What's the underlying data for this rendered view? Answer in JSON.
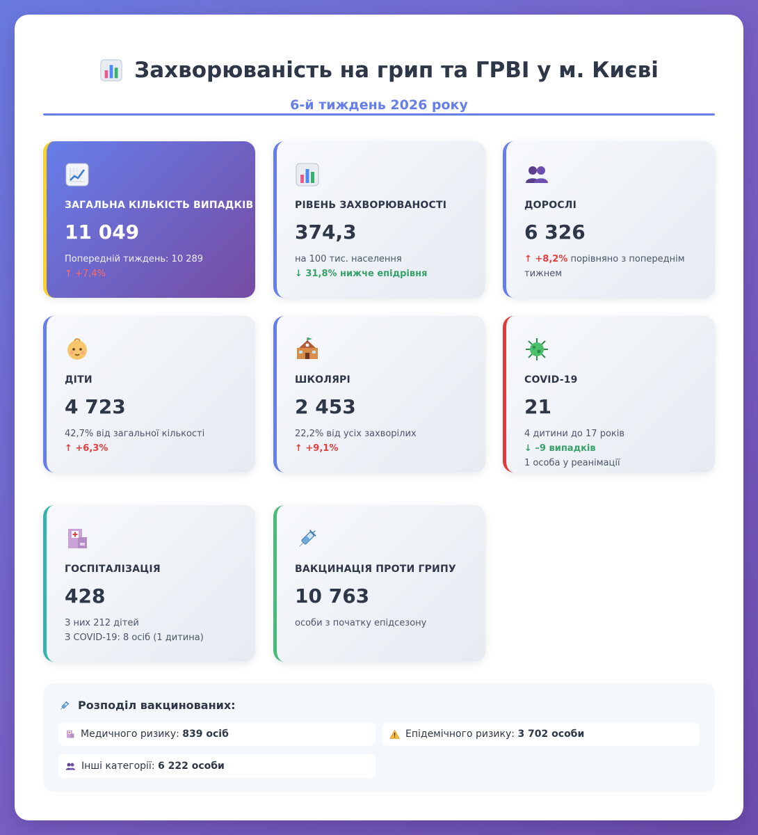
{
  "header": {
    "title": "Захворюваність на грип та ГРВІ у м. Києві",
    "subtitle": "6-й тиждень 2026 року",
    "title_icon": "bar-chart-icon"
  },
  "cards": [
    {
      "icon": "chart-increasing-icon",
      "label": "ЗАГАЛЬНА КІЛЬКІСТЬ ВИПАДКІВ",
      "value": "11 049",
      "note1": "Попередній тиждень: 10 289",
      "note2": "↑ +7,4%"
    },
    {
      "icon": "bar-chart-icon",
      "label": "РІВЕНЬ ЗАХВОРЮВАНОСТІ",
      "value": "374,3",
      "note1": "на 100 тис. населення",
      "note2": "↓ 31,8% нижче епідрівня"
    },
    {
      "icon": "people-icon",
      "label": "ДОРОСЛІ",
      "value": "6 326",
      "note_change": "↑ +8,2%",
      "note_rest": " порівняно з попереднім тижнем"
    },
    {
      "icon": "baby-icon",
      "label": "ДІТИ",
      "value": "4 723",
      "note1": "42,7% від загальної кількості",
      "note2": "↑ +6,3%"
    },
    {
      "icon": "school-icon",
      "label": "ШКОЛЯРІ",
      "value": "2 453",
      "note1": "22,2% від усіх захворілих",
      "note2": "↑ +9,1%"
    },
    {
      "icon": "virus-icon",
      "label": "COVID-19",
      "value": "21",
      "note1": "4 дитини до 17 років",
      "note2": "↓ –9 випадків",
      "note3": "1 особа у реанімації"
    },
    {
      "icon": "hospital-icon",
      "label": "ГОСПІТАЛІЗАЦІЯ",
      "value": "428",
      "note1": "З них 212 дітей",
      "note2": "З COVID-19: 8 осіб (1 дитина)"
    },
    {
      "icon": "syringe-icon",
      "label": "ВАКЦИНАЦІЯ ПРОТИ ГРИПУ",
      "value": "10 763",
      "note1": "особи з початку епідсезону"
    }
  ],
  "distribution": {
    "title": "Розподіл вакцинованих:",
    "items": [
      {
        "icon": "hospital-icon",
        "label": "Медичного ризику: ",
        "value": "839 осіб"
      },
      {
        "icon": "warning-icon",
        "label": "Епідемічного ризику: ",
        "value": "3 702 особи"
      },
      {
        "icon": "people-icon",
        "label": "Інші категорії: ",
        "value": "6 222 особи"
      }
    ]
  },
  "colors": {
    "accent": "#667eea",
    "gradient_end": "#764ba2",
    "up": "#e53e3e",
    "down": "#38a169",
    "covid": "#e03a3a",
    "hospital": "#38b2ac",
    "vaccination": "#48bb78",
    "highlight": "#f6d32d"
  }
}
